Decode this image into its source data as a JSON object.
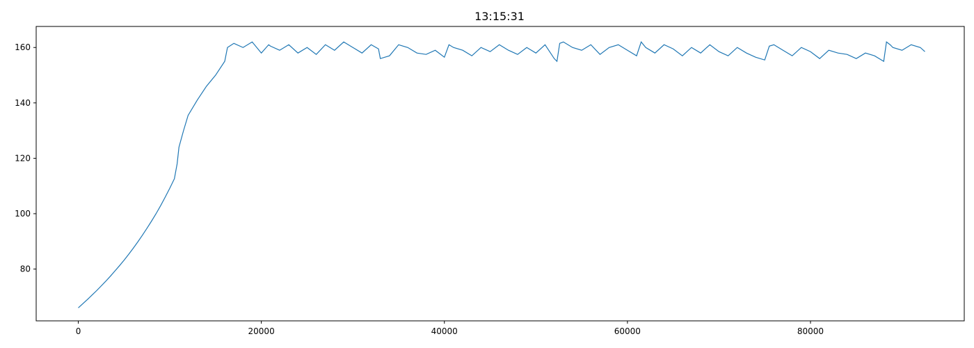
{
  "chart_data": {
    "type": "line",
    "title": "13:15:31",
    "xlabel": "",
    "ylabel": "",
    "xlim": [
      -4600,
      96800
    ],
    "ylim": [
      61.3,
      167.6
    ],
    "xticks": [
      0,
      20000,
      40000,
      60000,
      80000
    ],
    "yticks": [
      80,
      100,
      120,
      140,
      160
    ],
    "grid": false,
    "legend": "none",
    "series": [
      {
        "color": "#1f77b4",
        "x": [
          0,
          500,
          1000,
          1500,
          2000,
          2500,
          3000,
          3500,
          4000,
          4500,
          5000,
          5500,
          6000,
          6500,
          7000,
          7500,
          8000,
          8500,
          9000,
          9500,
          10000,
          10500,
          10800,
          11000,
          11500,
          12000,
          13000,
          14000,
          15000,
          16000,
          16300,
          17000,
          18000,
          19000,
          20000,
          20800,
          21000,
          22000,
          23000,
          24000,
          25000,
          26000,
          27000,
          28000,
          29000,
          30000,
          31000,
          32000,
          32800,
          33000,
          34000,
          35000,
          36000,
          37000,
          38000,
          39000,
          40000,
          40500,
          41000,
          42000,
          43000,
          44000,
          45000,
          46000,
          47000,
          48000,
          49000,
          50000,
          51000,
          52000,
          52300,
          52600,
          53000,
          54000,
          55000,
          56000,
          57000,
          58000,
          59000,
          60000,
          61000,
          61500,
          62000,
          63000,
          64000,
          65000,
          66000,
          67000,
          68000,
          69000,
          70000,
          71000,
          72000,
          73000,
          74000,
          75000,
          75500,
          76000,
          77000,
          78000,
          79000,
          80000,
          81000,
          82000,
          83000,
          84000,
          85000,
          86000,
          87000,
          88000,
          88300,
          88700,
          89000,
          90000,
          91000,
          92000,
          92500
        ],
        "y": [
          66,
          67.5,
          69,
          70.6,
          72.2,
          73.9,
          75.6,
          77.4,
          79.3,
          81.2,
          83.2,
          85.3,
          87.5,
          89.8,
          92.2,
          94.7,
          97.3,
          100,
          102.9,
          106,
          109.2,
          112.6,
          118,
          124,
          130,
          135.5,
          141,
          146,
          150,
          155,
          160,
          161.5,
          160,
          162,
          158,
          161,
          160.5,
          159,
          161,
          158,
          160,
          157.5,
          161,
          159,
          162,
          160,
          158,
          161,
          159.5,
          156,
          157,
          161,
          160,
          158,
          157.5,
          159,
          156.5,
          161,
          160,
          159,
          157,
          160,
          158.5,
          161,
          159,
          157.5,
          160,
          158,
          161,
          156,
          155,
          161.5,
          162,
          160,
          159,
          161,
          157.5,
          160,
          161,
          159,
          157,
          162,
          160,
          158,
          161,
          159.5,
          157,
          160,
          158,
          161,
          158.5,
          157,
          160,
          158,
          156.5,
          155.5,
          160.5,
          161,
          159,
          157,
          160,
          158.5,
          156,
          159,
          158,
          157.5,
          156,
          158,
          157,
          155,
          162,
          161,
          160,
          159,
          161,
          160,
          158.5
        ]
      }
    ]
  }
}
